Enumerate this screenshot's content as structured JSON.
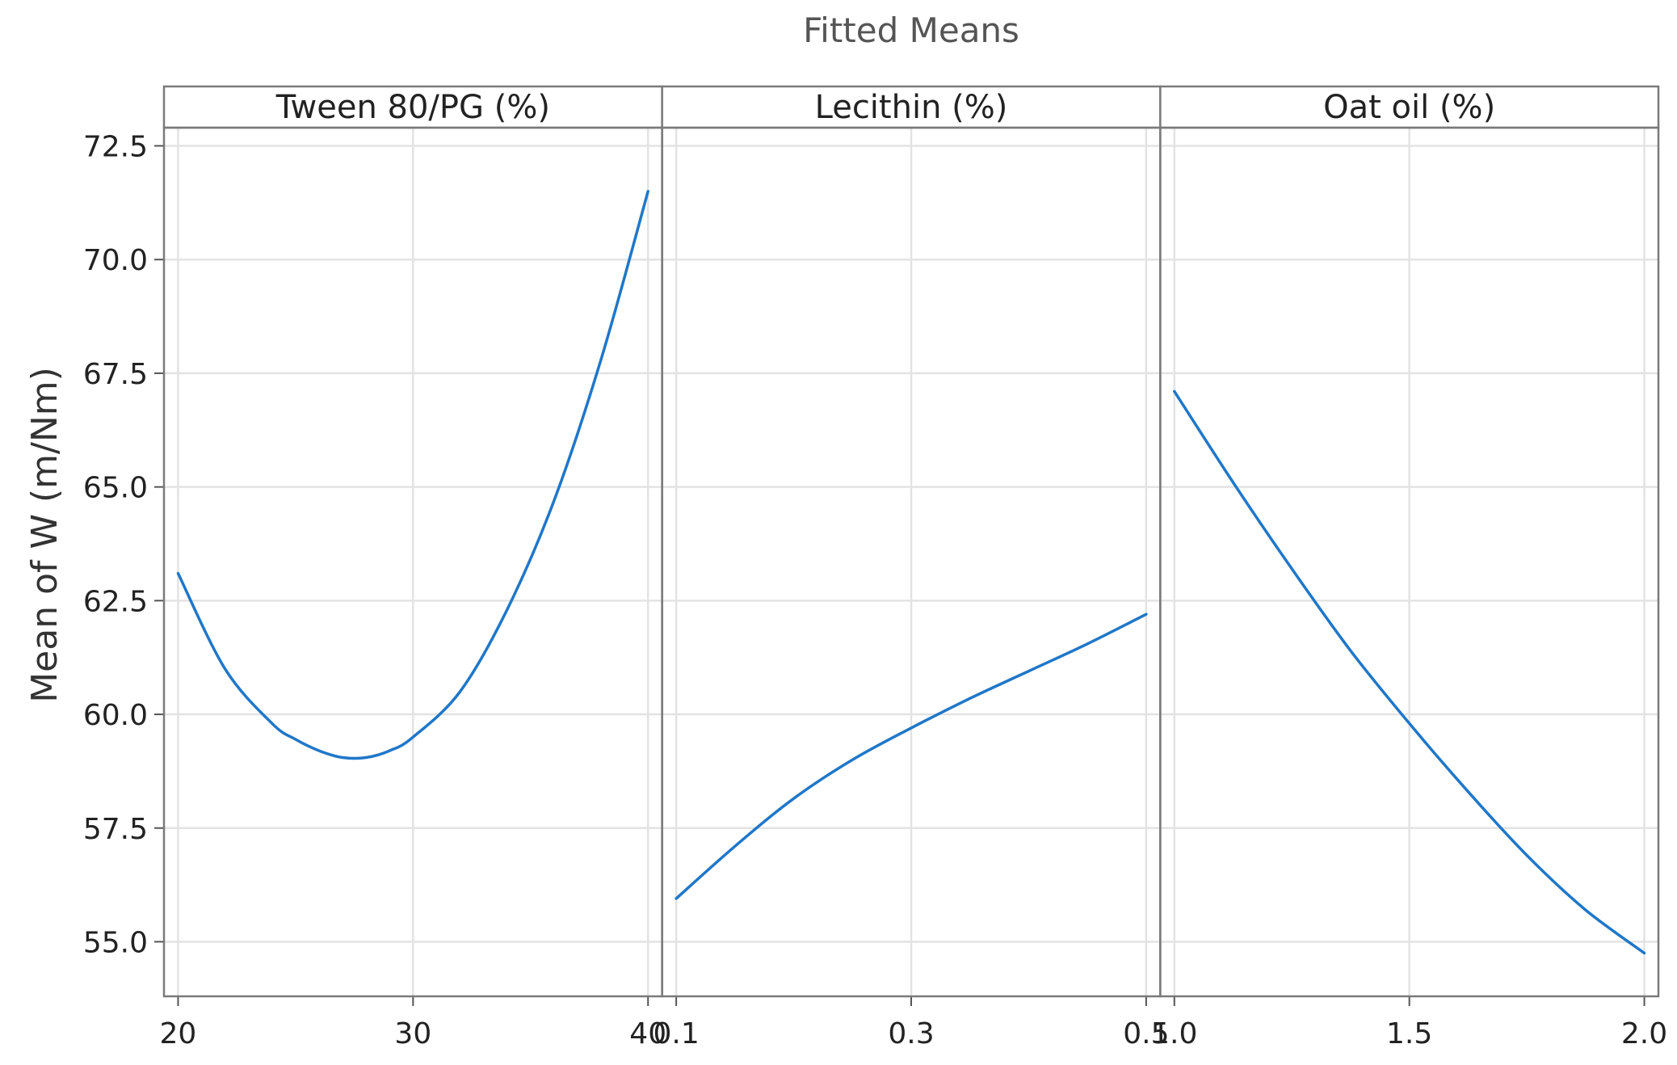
{
  "chart_data": {
    "type": "line",
    "title": "Fitted Means",
    "ylabel": "Mean of W (m/Nm)",
    "ylim": [
      53.8,
      72.9
    ],
    "yticks": [
      "55.0",
      "57.5",
      "60.0",
      "62.5",
      "65.0",
      "67.5",
      "70.0",
      "72.5"
    ],
    "grid": true,
    "line_color": "#1f77c9",
    "panels": [
      {
        "title": "Tween 80/PG (%)",
        "xlim": [
          19.4,
          40.6
        ],
        "xticks": [
          "20",
          "30",
          "40"
        ],
        "x": [
          20,
          22,
          24,
          25,
          26,
          27,
          28,
          29,
          30,
          32,
          34,
          36,
          38,
          40
        ],
        "y": [
          63.1,
          61.0,
          59.8,
          59.45,
          59.2,
          59.05,
          59.05,
          59.2,
          59.5,
          60.5,
          62.3,
          64.7,
          67.8,
          71.5
        ]
      },
      {
        "title": "Lecithin (%)",
        "xlim": [
          0.088,
          0.512
        ],
        "xticks": [
          "0.1",
          "0.3",
          "0.5"
        ],
        "x": [
          0.1,
          0.15,
          0.2,
          0.25,
          0.3,
          0.35,
          0.4,
          0.45,
          0.5
        ],
        "y": [
          55.95,
          57.1,
          58.15,
          59.0,
          59.7,
          60.35,
          60.95,
          61.55,
          62.2
        ]
      },
      {
        "title": "Oat oil (%)",
        "xlim": [
          0.97,
          2.03
        ],
        "xticks": [
          "1.0",
          "1.5",
          "2.0"
        ],
        "x": [
          1.0,
          1.125,
          1.25,
          1.375,
          1.5,
          1.625,
          1.75,
          1.875,
          2.0
        ],
        "y": [
          67.1,
          65.1,
          63.2,
          61.4,
          59.8,
          58.3,
          56.9,
          55.7,
          54.75
        ]
      }
    ]
  }
}
